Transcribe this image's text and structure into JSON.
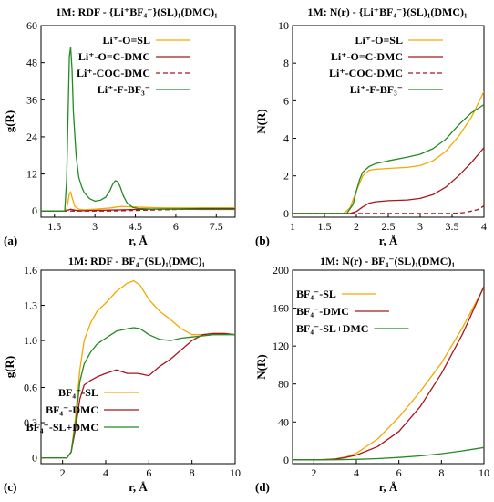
{
  "chart_data": [
    {
      "id": "a",
      "type": "line",
      "panel_label": "(a)",
      "title": "1M: RDF - {Li⁺BF₄⁻}(SL)₁(DMC)₁",
      "xlabel": "r, Å",
      "ylabel": "g(R)",
      "xlim": [
        1,
        8.2
      ],
      "ylim": [
        -2,
        60
      ],
      "xticks": [
        1.5,
        3,
        4.5,
        6,
        7.5
      ],
      "xtick_labels": [
        "1.5",
        "3",
        "4.5",
        "6",
        "7.5"
      ],
      "yticks": [
        0,
        12,
        24,
        36,
        48,
        60
      ],
      "ytick_labels": [
        "0",
        "12",
        "24",
        "36",
        "48",
        "60"
      ],
      "legend_position": "top-right",
      "series": [
        {
          "name": "Li⁺-O=SL",
          "color": "#f5a800",
          "dash": "",
          "x": [
            1.0,
            1.85,
            1.95,
            2.0,
            2.05,
            2.1,
            2.15,
            2.25,
            2.4,
            2.6,
            2.8,
            3.0,
            3.3,
            3.6,
            3.8,
            4.0,
            4.2,
            4.5,
            4.8,
            5.2,
            5.6,
            6.0,
            7.0,
            8.2
          ],
          "y": [
            0,
            0,
            0.5,
            3.0,
            5.6,
            6.2,
            4.5,
            1.5,
            0.6,
            0.4,
            0.5,
            0.6,
            0.8,
            1.0,
            1.3,
            1.5,
            1.4,
            1.3,
            1.2,
            1.1,
            1.0,
            1.0,
            1.0,
            1.0
          ]
        },
        {
          "name": "Li⁺-O=C-DMC",
          "color": "#a8161b",
          "dash": "",
          "x": [
            1.0,
            1.9,
            2.0,
            2.1,
            2.2,
            2.3,
            2.5,
            3.0,
            3.5,
            4.0,
            4.5,
            5.0,
            6.0,
            7.0,
            8.2
          ],
          "y": [
            0,
            0,
            0.3,
            0.6,
            0.4,
            0.2,
            0.1,
            0.2,
            0.3,
            0.4,
            0.5,
            0.6,
            0.7,
            0.8,
            0.8
          ]
        },
        {
          "name": "Li⁺-COC-DMC",
          "color": "#a8161b",
          "dash": "5,3",
          "x": [
            1.0,
            3.5,
            4.0,
            5.0,
            6.0,
            7.0,
            8.2
          ],
          "y": [
            0,
            0,
            0.1,
            0.3,
            0.5,
            0.6,
            0.7
          ]
        },
        {
          "name": "Li⁺-F-BF₃⁻",
          "color": "#228b22",
          "dash": "",
          "x": [
            1.0,
            1.88,
            1.95,
            2.0,
            2.05,
            2.1,
            2.15,
            2.2,
            2.3,
            2.4,
            2.5,
            2.6,
            2.8,
            3.0,
            3.2,
            3.4,
            3.55,
            3.65,
            3.75,
            3.85,
            3.95,
            4.05,
            4.2,
            4.4,
            4.6,
            5.0,
            6.0,
            7.0,
            8.2
          ],
          "y": [
            0,
            0,
            10,
            30,
            50,
            53,
            46,
            32,
            18,
            11,
            8,
            6,
            4,
            3.2,
            3.5,
            4.5,
            6.5,
            8.5,
            9.8,
            9.5,
            7.5,
            5.0,
            2.5,
            1.2,
            0.8,
            0.7,
            0.6,
            0.5,
            0.5
          ]
        }
      ]
    },
    {
      "id": "b",
      "type": "line",
      "panel_label": "(b)",
      "title": "1M: N(r) - {Li⁺BF₄⁻}(SL)₁(DMC)₁",
      "xlabel": "r, Å",
      "ylabel": "N(R)",
      "xlim": [
        1,
        4
      ],
      "ylim": [
        -0.2,
        10
      ],
      "xticks": [
        1,
        1.5,
        2,
        2.5,
        3,
        3.5,
        4
      ],
      "xtick_labels": [
        "1",
        "1.5",
        "2",
        "2.5",
        "3",
        "3.5",
        "4"
      ],
      "yticks": [
        0,
        2,
        4,
        6,
        8,
        10
      ],
      "ytick_labels": [
        "0",
        "2",
        "4",
        "6",
        "8",
        "10"
      ],
      "legend_position": "top-right",
      "series": [
        {
          "name": "Li⁺-O=SL",
          "color": "#f5a800",
          "dash": "",
          "x": [
            1.0,
            1.8,
            1.9,
            2.0,
            2.1,
            2.2,
            2.3,
            2.5,
            2.8,
            3.0,
            3.2,
            3.4,
            3.6,
            3.8,
            4.0
          ],
          "y": [
            0,
            0,
            0.3,
            1.2,
            2.0,
            2.3,
            2.35,
            2.4,
            2.45,
            2.55,
            2.8,
            3.3,
            4.1,
            5.1,
            6.5
          ]
        },
        {
          "name": "Li⁺-O=C-DMC",
          "color": "#a8161b",
          "dash": "",
          "x": [
            1.0,
            1.9,
            2.0,
            2.1,
            2.2,
            2.3,
            2.5,
            2.8,
            3.0,
            3.2,
            3.4,
            3.6,
            3.8,
            4.0
          ],
          "y": [
            0,
            0,
            0.1,
            0.35,
            0.55,
            0.62,
            0.68,
            0.72,
            0.8,
            1.0,
            1.4,
            2.0,
            2.7,
            3.5
          ]
        },
        {
          "name": "Li⁺-COC-DMC",
          "color": "#a8161b",
          "dash": "5,3",
          "x": [
            1.0,
            3.5,
            3.7,
            3.9,
            4.0
          ],
          "y": [
            0,
            0,
            0.05,
            0.2,
            0.4
          ]
        },
        {
          "name": "Li⁺-F-BF₃⁻",
          "color": "#228b22",
          "dash": "",
          "x": [
            1.0,
            1.85,
            1.95,
            2.0,
            2.05,
            2.1,
            2.2,
            2.3,
            2.5,
            2.8,
            3.0,
            3.2,
            3.4,
            3.6,
            3.8,
            4.0
          ],
          "y": [
            0,
            0,
            0.5,
            1.2,
            1.8,
            2.2,
            2.5,
            2.65,
            2.8,
            3.0,
            3.15,
            3.45,
            3.95,
            4.7,
            5.35,
            5.8
          ]
        }
      ]
    },
    {
      "id": "c",
      "type": "line",
      "panel_label": "(c)",
      "title": "1M: RDF - BF₄⁻(SL)₁(DMC)₁",
      "xlabel": "r, Å",
      "ylabel": "g(R)",
      "xlim": [
        1,
        10
      ],
      "ylim": [
        -0.05,
        1.6
      ],
      "xticks": [
        2,
        4,
        6,
        8,
        10
      ],
      "xtick_labels": [
        "2",
        "4",
        "6",
        "8",
        "10"
      ],
      "yticks": [
        0,
        0.3,
        0.6,
        1.0,
        1.3,
        1.6
      ],
      "ytick_labels": [
        "0",
        "0.3",
        "0.6",
        "1.0",
        "1.3",
        "1.6"
      ],
      "legend_position": "bottom-right",
      "series": [
        {
          "name": "BF₄⁻-SL",
          "color": "#f5a800",
          "dash": "",
          "x": [
            1.0,
            2.2,
            2.4,
            2.6,
            2.8,
            3.0,
            3.3,
            3.6,
            4.0,
            4.5,
            5.0,
            5.3,
            5.6,
            6.0,
            6.5,
            7.0,
            7.5,
            8.0,
            8.5,
            9.0,
            9.5,
            10.0
          ],
          "y": [
            0,
            0,
            0.05,
            0.35,
            0.75,
            1.0,
            1.15,
            1.25,
            1.32,
            1.42,
            1.49,
            1.51,
            1.47,
            1.35,
            1.25,
            1.18,
            1.1,
            1.05,
            1.05,
            1.06,
            1.06,
            1.05
          ]
        },
        {
          "name": "BF₄⁻-DMC",
          "color": "#a8161b",
          "dash": "",
          "x": [
            1.0,
            2.2,
            2.4,
            2.6,
            2.8,
            3.0,
            3.3,
            3.6,
            4.0,
            4.5,
            5.0,
            5.5,
            6.0,
            6.5,
            7.0,
            7.5,
            8.0,
            8.5,
            9.0,
            9.5,
            10.0
          ],
          "y": [
            0,
            0,
            0.05,
            0.25,
            0.5,
            0.62,
            0.66,
            0.69,
            0.72,
            0.75,
            0.72,
            0.72,
            0.7,
            0.78,
            0.84,
            0.92,
            1.0,
            1.05,
            1.06,
            1.06,
            1.05
          ]
        },
        {
          "name": "BF₄⁻-SL+DMC",
          "color": "#228b22",
          "dash": "",
          "x": [
            1.0,
            2.2,
            2.4,
            2.6,
            2.8,
            3.0,
            3.3,
            3.6,
            4.0,
            4.5,
            5.0,
            5.3,
            5.6,
            6.0,
            6.5,
            7.0,
            7.5,
            8.0,
            8.5,
            9.0,
            9.5,
            10.0
          ],
          "y": [
            0,
            0,
            0.05,
            0.3,
            0.65,
            0.8,
            0.9,
            0.97,
            1.02,
            1.08,
            1.1,
            1.11,
            1.1,
            1.05,
            1.01,
            1.0,
            1.02,
            1.03,
            1.04,
            1.05,
            1.05,
            1.05
          ]
        }
      ]
    },
    {
      "id": "d",
      "type": "line",
      "panel_label": "(d)",
      "title": "1M: N(r) - BF₄⁻(SL)₁(DMC)₁",
      "xlabel": "r, Å",
      "ylabel": "N(R)",
      "xlim": [
        1,
        10
      ],
      "ylim": [
        -4,
        200
      ],
      "xticks": [
        2,
        4,
        6,
        8,
        10
      ],
      "xtick_labels": [
        "2",
        "4",
        "6",
        "8",
        "10"
      ],
      "yticks": [
        0,
        40,
        80,
        120,
        160,
        200
      ],
      "ytick_labels": [
        "0",
        "40",
        "80",
        "120",
        "160",
        "200"
      ],
      "legend_position": "top-left",
      "series": [
        {
          "name": "BF₄⁻-SL",
          "color": "#f5a800",
          "dash": "",
          "x": [
            1.0,
            2.3,
            3.0,
            3.5,
            4.0,
            5.0,
            6.0,
            7.0,
            8.0,
            9.0,
            10.0
          ],
          "y": [
            0,
            0,
            1,
            3,
            7,
            22,
            45,
            72,
            102,
            140,
            182
          ]
        },
        {
          "name": "BF₄⁻-DMC",
          "color": "#a8161b",
          "dash": "",
          "x": [
            1.0,
            2.3,
            3.0,
            3.5,
            4.0,
            5.0,
            6.0,
            7.0,
            8.0,
            9.0,
            10.0
          ],
          "y": [
            0,
            0,
            0.8,
            2.5,
            5,
            14,
            30,
            56,
            91,
            133,
            183
          ]
        },
        {
          "name": "BF₄⁻-SL+DMC",
          "color": "#228b22",
          "dash": "",
          "x": [
            1.0,
            2.3,
            3.0,
            4.0,
            5.0,
            6.0,
            7.0,
            8.0,
            9.0,
            10.0
          ],
          "y": [
            0,
            0,
            0.1,
            0.5,
            1.3,
            2.5,
            4.2,
            6.5,
            9.5,
            13
          ]
        }
      ]
    }
  ]
}
